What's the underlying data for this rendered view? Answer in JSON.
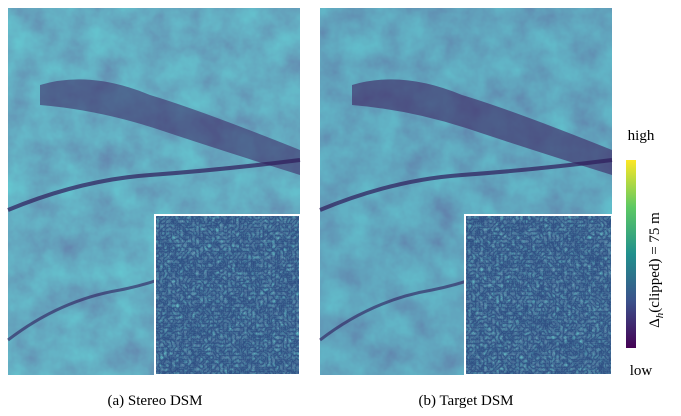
{
  "figure": {
    "panels": [
      {
        "caption": "(a) Stereo DSM"
      },
      {
        "caption": "(b) Target DSM"
      }
    ],
    "colorbar": {
      "high_label": "high",
      "low_label": "low",
      "title": {
        "symbol": "Δ",
        "subscript": "h",
        "text": "(clipped) = 75 m"
      }
    }
  }
}
